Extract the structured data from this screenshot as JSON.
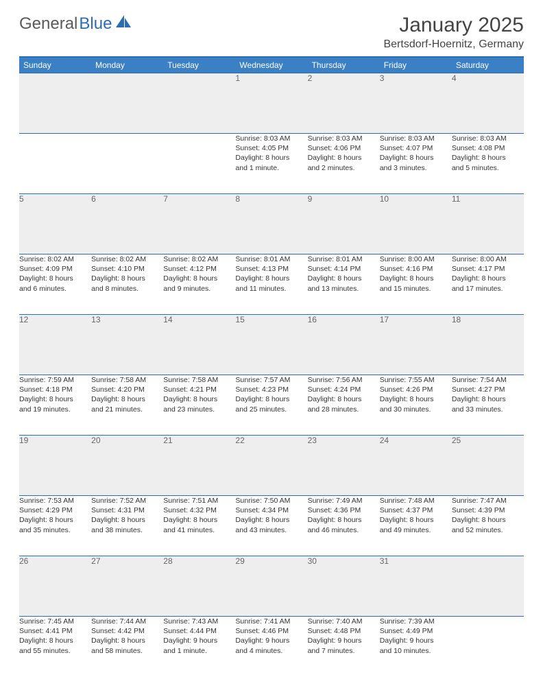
{
  "brand": {
    "part1": "General",
    "part2": "Blue"
  },
  "title": "January 2025",
  "location": "Bertsdorf-Hoernitz, Germany",
  "colors": {
    "header_bg": "#3b7fc4",
    "border": "#2a6db5",
    "daynum_bg": "#eeeeee",
    "text": "#333333"
  },
  "weekdays": [
    "Sunday",
    "Monday",
    "Tuesday",
    "Wednesday",
    "Thursday",
    "Friday",
    "Saturday"
  ],
  "weeks": [
    [
      null,
      null,
      null,
      {
        "n": "1",
        "sr": "Sunrise: 8:03 AM",
        "ss": "Sunset: 4:05 PM",
        "d1": "Daylight: 8 hours",
        "d2": "and 1 minute."
      },
      {
        "n": "2",
        "sr": "Sunrise: 8:03 AM",
        "ss": "Sunset: 4:06 PM",
        "d1": "Daylight: 8 hours",
        "d2": "and 2 minutes."
      },
      {
        "n": "3",
        "sr": "Sunrise: 8:03 AM",
        "ss": "Sunset: 4:07 PM",
        "d1": "Daylight: 8 hours",
        "d2": "and 3 minutes."
      },
      {
        "n": "4",
        "sr": "Sunrise: 8:03 AM",
        "ss": "Sunset: 4:08 PM",
        "d1": "Daylight: 8 hours",
        "d2": "and 5 minutes."
      }
    ],
    [
      {
        "n": "5",
        "sr": "Sunrise: 8:02 AM",
        "ss": "Sunset: 4:09 PM",
        "d1": "Daylight: 8 hours",
        "d2": "and 6 minutes."
      },
      {
        "n": "6",
        "sr": "Sunrise: 8:02 AM",
        "ss": "Sunset: 4:10 PM",
        "d1": "Daylight: 8 hours",
        "d2": "and 8 minutes."
      },
      {
        "n": "7",
        "sr": "Sunrise: 8:02 AM",
        "ss": "Sunset: 4:12 PM",
        "d1": "Daylight: 8 hours",
        "d2": "and 9 minutes."
      },
      {
        "n": "8",
        "sr": "Sunrise: 8:01 AM",
        "ss": "Sunset: 4:13 PM",
        "d1": "Daylight: 8 hours",
        "d2": "and 11 minutes."
      },
      {
        "n": "9",
        "sr": "Sunrise: 8:01 AM",
        "ss": "Sunset: 4:14 PM",
        "d1": "Daylight: 8 hours",
        "d2": "and 13 minutes."
      },
      {
        "n": "10",
        "sr": "Sunrise: 8:00 AM",
        "ss": "Sunset: 4:16 PM",
        "d1": "Daylight: 8 hours",
        "d2": "and 15 minutes."
      },
      {
        "n": "11",
        "sr": "Sunrise: 8:00 AM",
        "ss": "Sunset: 4:17 PM",
        "d1": "Daylight: 8 hours",
        "d2": "and 17 minutes."
      }
    ],
    [
      {
        "n": "12",
        "sr": "Sunrise: 7:59 AM",
        "ss": "Sunset: 4:18 PM",
        "d1": "Daylight: 8 hours",
        "d2": "and 19 minutes."
      },
      {
        "n": "13",
        "sr": "Sunrise: 7:58 AM",
        "ss": "Sunset: 4:20 PM",
        "d1": "Daylight: 8 hours",
        "d2": "and 21 minutes."
      },
      {
        "n": "14",
        "sr": "Sunrise: 7:58 AM",
        "ss": "Sunset: 4:21 PM",
        "d1": "Daylight: 8 hours",
        "d2": "and 23 minutes."
      },
      {
        "n": "15",
        "sr": "Sunrise: 7:57 AM",
        "ss": "Sunset: 4:23 PM",
        "d1": "Daylight: 8 hours",
        "d2": "and 25 minutes."
      },
      {
        "n": "16",
        "sr": "Sunrise: 7:56 AM",
        "ss": "Sunset: 4:24 PM",
        "d1": "Daylight: 8 hours",
        "d2": "and 28 minutes."
      },
      {
        "n": "17",
        "sr": "Sunrise: 7:55 AM",
        "ss": "Sunset: 4:26 PM",
        "d1": "Daylight: 8 hours",
        "d2": "and 30 minutes."
      },
      {
        "n": "18",
        "sr": "Sunrise: 7:54 AM",
        "ss": "Sunset: 4:27 PM",
        "d1": "Daylight: 8 hours",
        "d2": "and 33 minutes."
      }
    ],
    [
      {
        "n": "19",
        "sr": "Sunrise: 7:53 AM",
        "ss": "Sunset: 4:29 PM",
        "d1": "Daylight: 8 hours",
        "d2": "and 35 minutes."
      },
      {
        "n": "20",
        "sr": "Sunrise: 7:52 AM",
        "ss": "Sunset: 4:31 PM",
        "d1": "Daylight: 8 hours",
        "d2": "and 38 minutes."
      },
      {
        "n": "21",
        "sr": "Sunrise: 7:51 AM",
        "ss": "Sunset: 4:32 PM",
        "d1": "Daylight: 8 hours",
        "d2": "and 41 minutes."
      },
      {
        "n": "22",
        "sr": "Sunrise: 7:50 AM",
        "ss": "Sunset: 4:34 PM",
        "d1": "Daylight: 8 hours",
        "d2": "and 43 minutes."
      },
      {
        "n": "23",
        "sr": "Sunrise: 7:49 AM",
        "ss": "Sunset: 4:36 PM",
        "d1": "Daylight: 8 hours",
        "d2": "and 46 minutes."
      },
      {
        "n": "24",
        "sr": "Sunrise: 7:48 AM",
        "ss": "Sunset: 4:37 PM",
        "d1": "Daylight: 8 hours",
        "d2": "and 49 minutes."
      },
      {
        "n": "25",
        "sr": "Sunrise: 7:47 AM",
        "ss": "Sunset: 4:39 PM",
        "d1": "Daylight: 8 hours",
        "d2": "and 52 minutes."
      }
    ],
    [
      {
        "n": "26",
        "sr": "Sunrise: 7:45 AM",
        "ss": "Sunset: 4:41 PM",
        "d1": "Daylight: 8 hours",
        "d2": "and 55 minutes."
      },
      {
        "n": "27",
        "sr": "Sunrise: 7:44 AM",
        "ss": "Sunset: 4:42 PM",
        "d1": "Daylight: 8 hours",
        "d2": "and 58 minutes."
      },
      {
        "n": "28",
        "sr": "Sunrise: 7:43 AM",
        "ss": "Sunset: 4:44 PM",
        "d1": "Daylight: 9 hours",
        "d2": "and 1 minute."
      },
      {
        "n": "29",
        "sr": "Sunrise: 7:41 AM",
        "ss": "Sunset: 4:46 PM",
        "d1": "Daylight: 9 hours",
        "d2": "and 4 minutes."
      },
      {
        "n": "30",
        "sr": "Sunrise: 7:40 AM",
        "ss": "Sunset: 4:48 PM",
        "d1": "Daylight: 9 hours",
        "d2": "and 7 minutes."
      },
      {
        "n": "31",
        "sr": "Sunrise: 7:39 AM",
        "ss": "Sunset: 4:49 PM",
        "d1": "Daylight: 9 hours",
        "d2": "and 10 minutes."
      },
      null
    ]
  ]
}
